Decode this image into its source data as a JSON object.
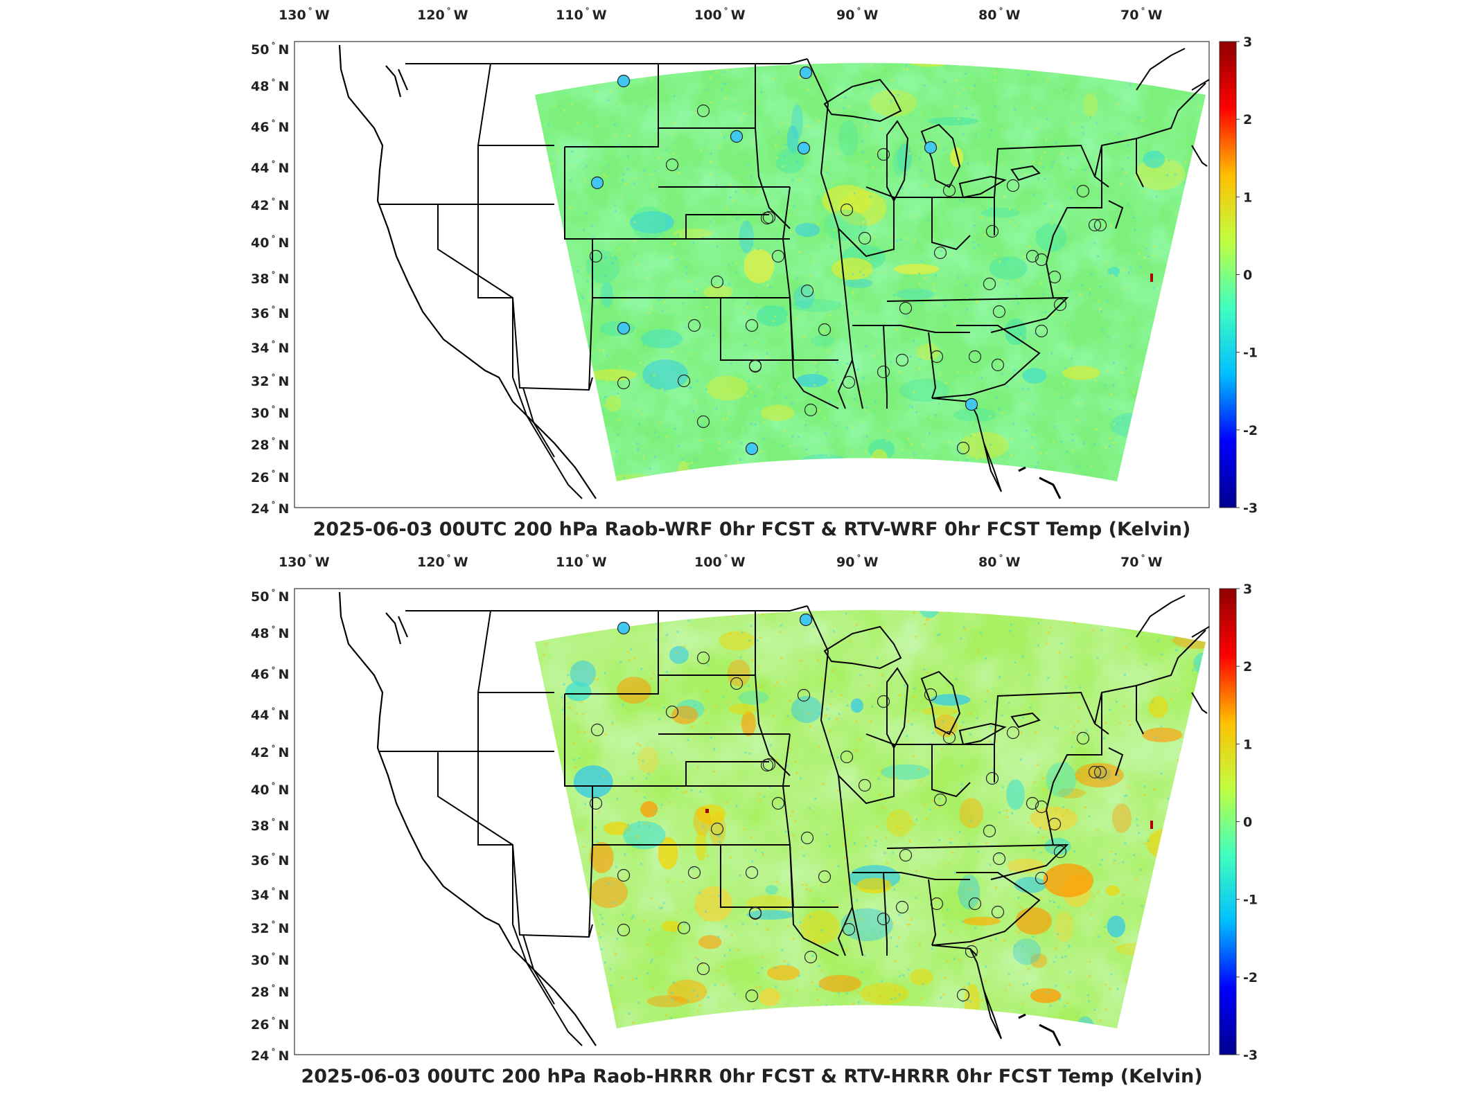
{
  "panels": [
    {
      "title": "2025-06-03 00UTC 200 hPa Raob-WRF 0hr FCST & RTV-WRF 0hr FCST Temp (Kelvin)",
      "variant": "wrf"
    },
    {
      "title": "2025-06-03 00UTC 200 hPa Raob-HRRR 0hr FCST & RTV-HRRR 0hr FCST Temp (Kelvin)",
      "variant": "hrrr"
    }
  ],
  "lon_ticks": [
    "130",
    "120",
    "110",
    "100",
    "90",
    "80",
    "70"
  ],
  "lon_suffix": "W",
  "lat_ticks": [
    "50",
    "48",
    "46",
    "44",
    "42",
    "40",
    "38",
    "36",
    "34",
    "32",
    "30",
    "28",
    "26",
    "24"
  ],
  "lat_suffix": "N",
  "colorbar": {
    "ticks": [
      "3",
      "2",
      "1",
      "0",
      "-1",
      "-2",
      "-3"
    ],
    "min": -3,
    "max": 3,
    "colors": [
      "#00008f",
      "#0000ff",
      "#00bfff",
      "#40ffbf",
      "#bfff40",
      "#ffbf00",
      "#ff0000",
      "#8f0000"
    ]
  },
  "icons": {
    "station": "raob-station-circle-icon"
  }
}
